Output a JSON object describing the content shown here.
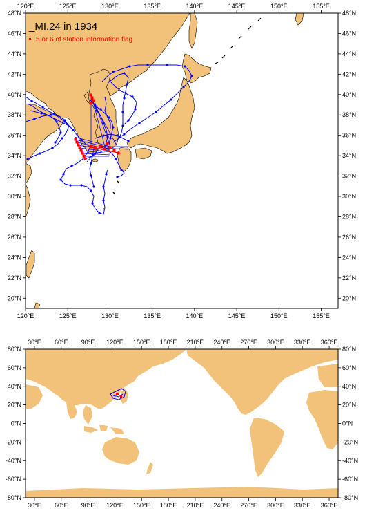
{
  "top_map": {
    "title": "_MI.24 in 1934",
    "legend_label": "5 or 6 of station information flag",
    "lon_range": [
      120,
      157
    ],
    "lat_range": [
      19,
      48
    ],
    "x_ticks": [
      "120°E",
      "125°E",
      "130°E",
      "135°E",
      "140°E",
      "145°E",
      "150°E",
      "155°E"
    ],
    "x_tick_values": [
      120,
      125,
      130,
      135,
      140,
      145,
      150,
      155
    ],
    "y_ticks": [
      "48°N",
      "46°N",
      "44°N",
      "42°N",
      "40°N",
      "38°N",
      "36°N",
      "34°N",
      "32°N",
      "30°N",
      "28°N",
      "26°N",
      "24°N",
      "22°N",
      "20°N"
    ],
    "y_tick_values": [
      48,
      46,
      44,
      42,
      40,
      38,
      36,
      34,
      32,
      30,
      28,
      26,
      24,
      22,
      20
    ]
  },
  "bottom_map": {
    "lon_range": [
      20,
      370
    ],
    "lat_range": [
      -80,
      80
    ],
    "x_ticks": [
      "30°E",
      "60°E",
      "90°E",
      "120°E",
      "150°E",
      "180°E",
      "210°E",
      "240°E",
      "270°E",
      "300°E",
      "330°E",
      "360°E"
    ],
    "x_tick_values": [
      30,
      60,
      90,
      120,
      150,
      180,
      210,
      240,
      270,
      300,
      330,
      360
    ],
    "y_ticks": [
      "80°N",
      "60°N",
      "40°N",
      "20°N",
      "0°N",
      "-20°N",
      "-40°N",
      "-60°N",
      "-80°N"
    ],
    "y_tick_values": [
      80,
      60,
      40,
      20,
      0,
      -20,
      -40,
      -60,
      -80
    ]
  },
  "colors": {
    "land": "#f2c27b",
    "track": "#0000ff",
    "flag_station": "#ff0000"
  }
}
